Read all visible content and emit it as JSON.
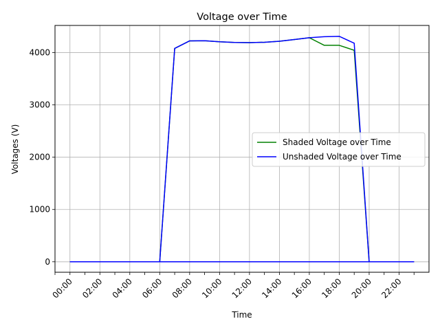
{
  "chart_data": {
    "type": "line",
    "title": "Voltage over Time",
    "xlabel": "Time",
    "ylabel": "Voltages (V)",
    "grid": true,
    "legend_position": "center-right",
    "xlim": [
      "23:00 (previous day)",
      "24:00"
    ],
    "ylim": [
      -200,
      4520
    ],
    "x_ticks": [
      "00:00",
      "02:00",
      "04:00",
      "06:00",
      "08:00",
      "10:00",
      "12:00",
      "14:00",
      "16:00",
      "18:00",
      "20:00",
      "22:00"
    ],
    "y_ticks": [
      0,
      1000,
      2000,
      3000,
      4000
    ],
    "x": [
      "00:00",
      "01:00",
      "02:00",
      "03:00",
      "04:00",
      "05:00",
      "06:00",
      "07:00",
      "08:00",
      "09:00",
      "10:00",
      "11:00",
      "12:00",
      "13:00",
      "14:00",
      "15:00",
      "16:00",
      "17:00",
      "18:00",
      "19:00",
      "20:00",
      "21:00",
      "22:00",
      "23:00"
    ],
    "series": [
      {
        "name": "Shaded Voltage over Time",
        "color": "#008000",
        "values": [
          0,
          0,
          0,
          0,
          0,
          0,
          0,
          4080,
          4225,
          4228,
          4208,
          4195,
          4192,
          4198,
          4218,
          4250,
          4285,
          4140,
          4140,
          4045,
          0,
          0,
          0,
          0
        ]
      },
      {
        "name": "Unshaded Voltage over Time",
        "color": "#0000ff",
        "values": [
          0,
          0,
          0,
          0,
          0,
          0,
          0,
          4080,
          4225,
          4228,
          4208,
          4195,
          4192,
          4198,
          4218,
          4250,
          4285,
          4305,
          4312,
          4180,
          0,
          0,
          0,
          0
        ]
      }
    ]
  }
}
